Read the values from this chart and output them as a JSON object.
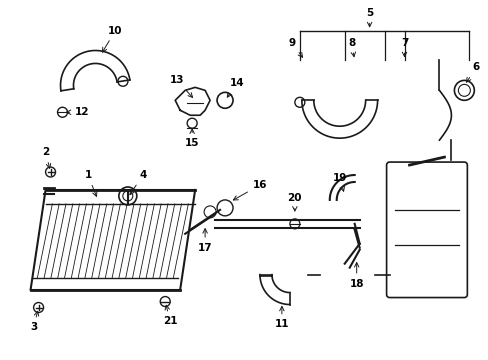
{
  "bg_color": "#ffffff",
  "line_color": "#1a1a1a",
  "text_color": "#000000",
  "lw_main": 1.4,
  "lw_thin": 0.8,
  "lw_thick": 2.0,
  "fs": 7.5
}
